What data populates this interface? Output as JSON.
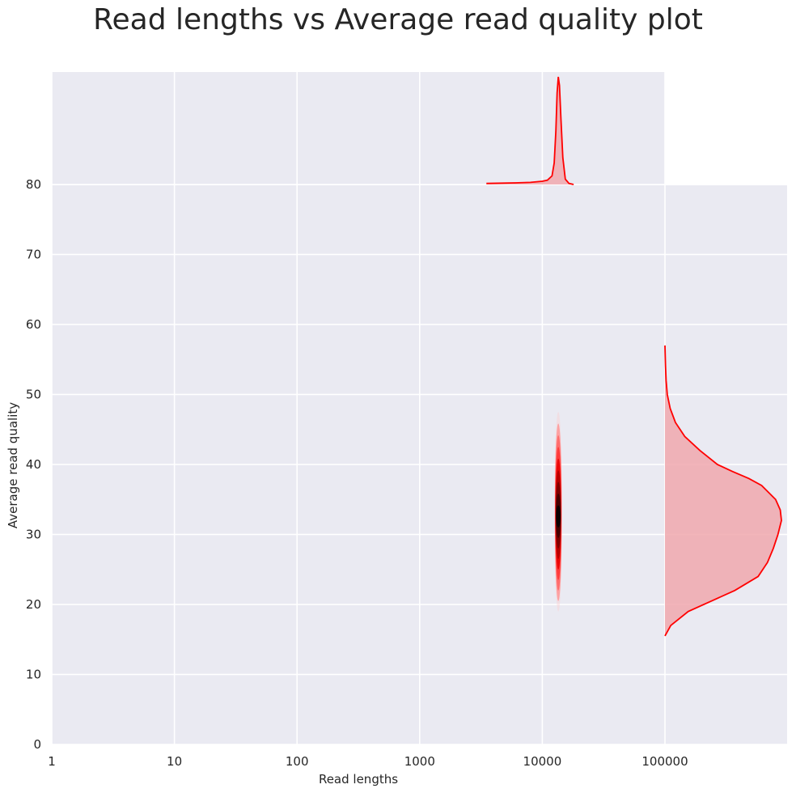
{
  "chart_data": {
    "type": "scatter",
    "title": "Read lengths vs Average read quality plot",
    "xlabel": "Read lengths",
    "ylabel": "Average read quality",
    "x_scale": "log",
    "xlim": [
      1,
      800000
    ],
    "ylim": [
      0,
      96
    ],
    "x_ticks": [
      1,
      10,
      100,
      1000,
      10000,
      100000
    ],
    "x_tick_labels": [
      "1",
      "10",
      "100",
      "1000",
      "10000",
      "100000"
    ],
    "y_ticks": [
      0,
      10,
      20,
      30,
      40,
      50,
      60,
      70,
      80
    ],
    "y_tick_labels": [
      "0",
      "10",
      "20",
      "30",
      "40",
      "50",
      "60",
      "70",
      "80"
    ],
    "grid": true,
    "colors": {
      "background": "#eaeaf2",
      "grid": "#ffffff",
      "series": "#ff0000",
      "fill": "#f0a8ae"
    },
    "joint_kde": {
      "center_read_length": 13500,
      "read_length_range": [
        12300,
        14800
      ],
      "center_quality": 32.5,
      "quality_range": [
        19,
        47.5
      ]
    },
    "marginal_x_kde": {
      "x": [
        3500,
        6000,
        8000,
        10000,
        11000,
        12000,
        12500,
        12900,
        13200,
        13500,
        13800,
        14200,
        14700,
        15400,
        16500,
        18000
      ],
      "density": [
        0.01,
        0.015,
        0.02,
        0.03,
        0.04,
        0.08,
        0.2,
        0.5,
        0.85,
        1.0,
        0.92,
        0.6,
        0.25,
        0.05,
        0.01,
        0
      ]
    },
    "marginal_y_kde": {
      "y": [
        15.5,
        17,
        19,
        20.5,
        22,
        24,
        26,
        28,
        30,
        32,
        33.5,
        35,
        37,
        38,
        39,
        40,
        42,
        44,
        46,
        48,
        50,
        52,
        54,
        57
      ],
      "density": [
        0,
        0.05,
        0.2,
        0.4,
        0.6,
        0.8,
        0.88,
        0.93,
        0.97,
        1.0,
        0.99,
        0.95,
        0.83,
        0.72,
        0.58,
        0.45,
        0.3,
        0.17,
        0.09,
        0.045,
        0.02,
        0.01,
        0.005,
        0
      ]
    }
  }
}
